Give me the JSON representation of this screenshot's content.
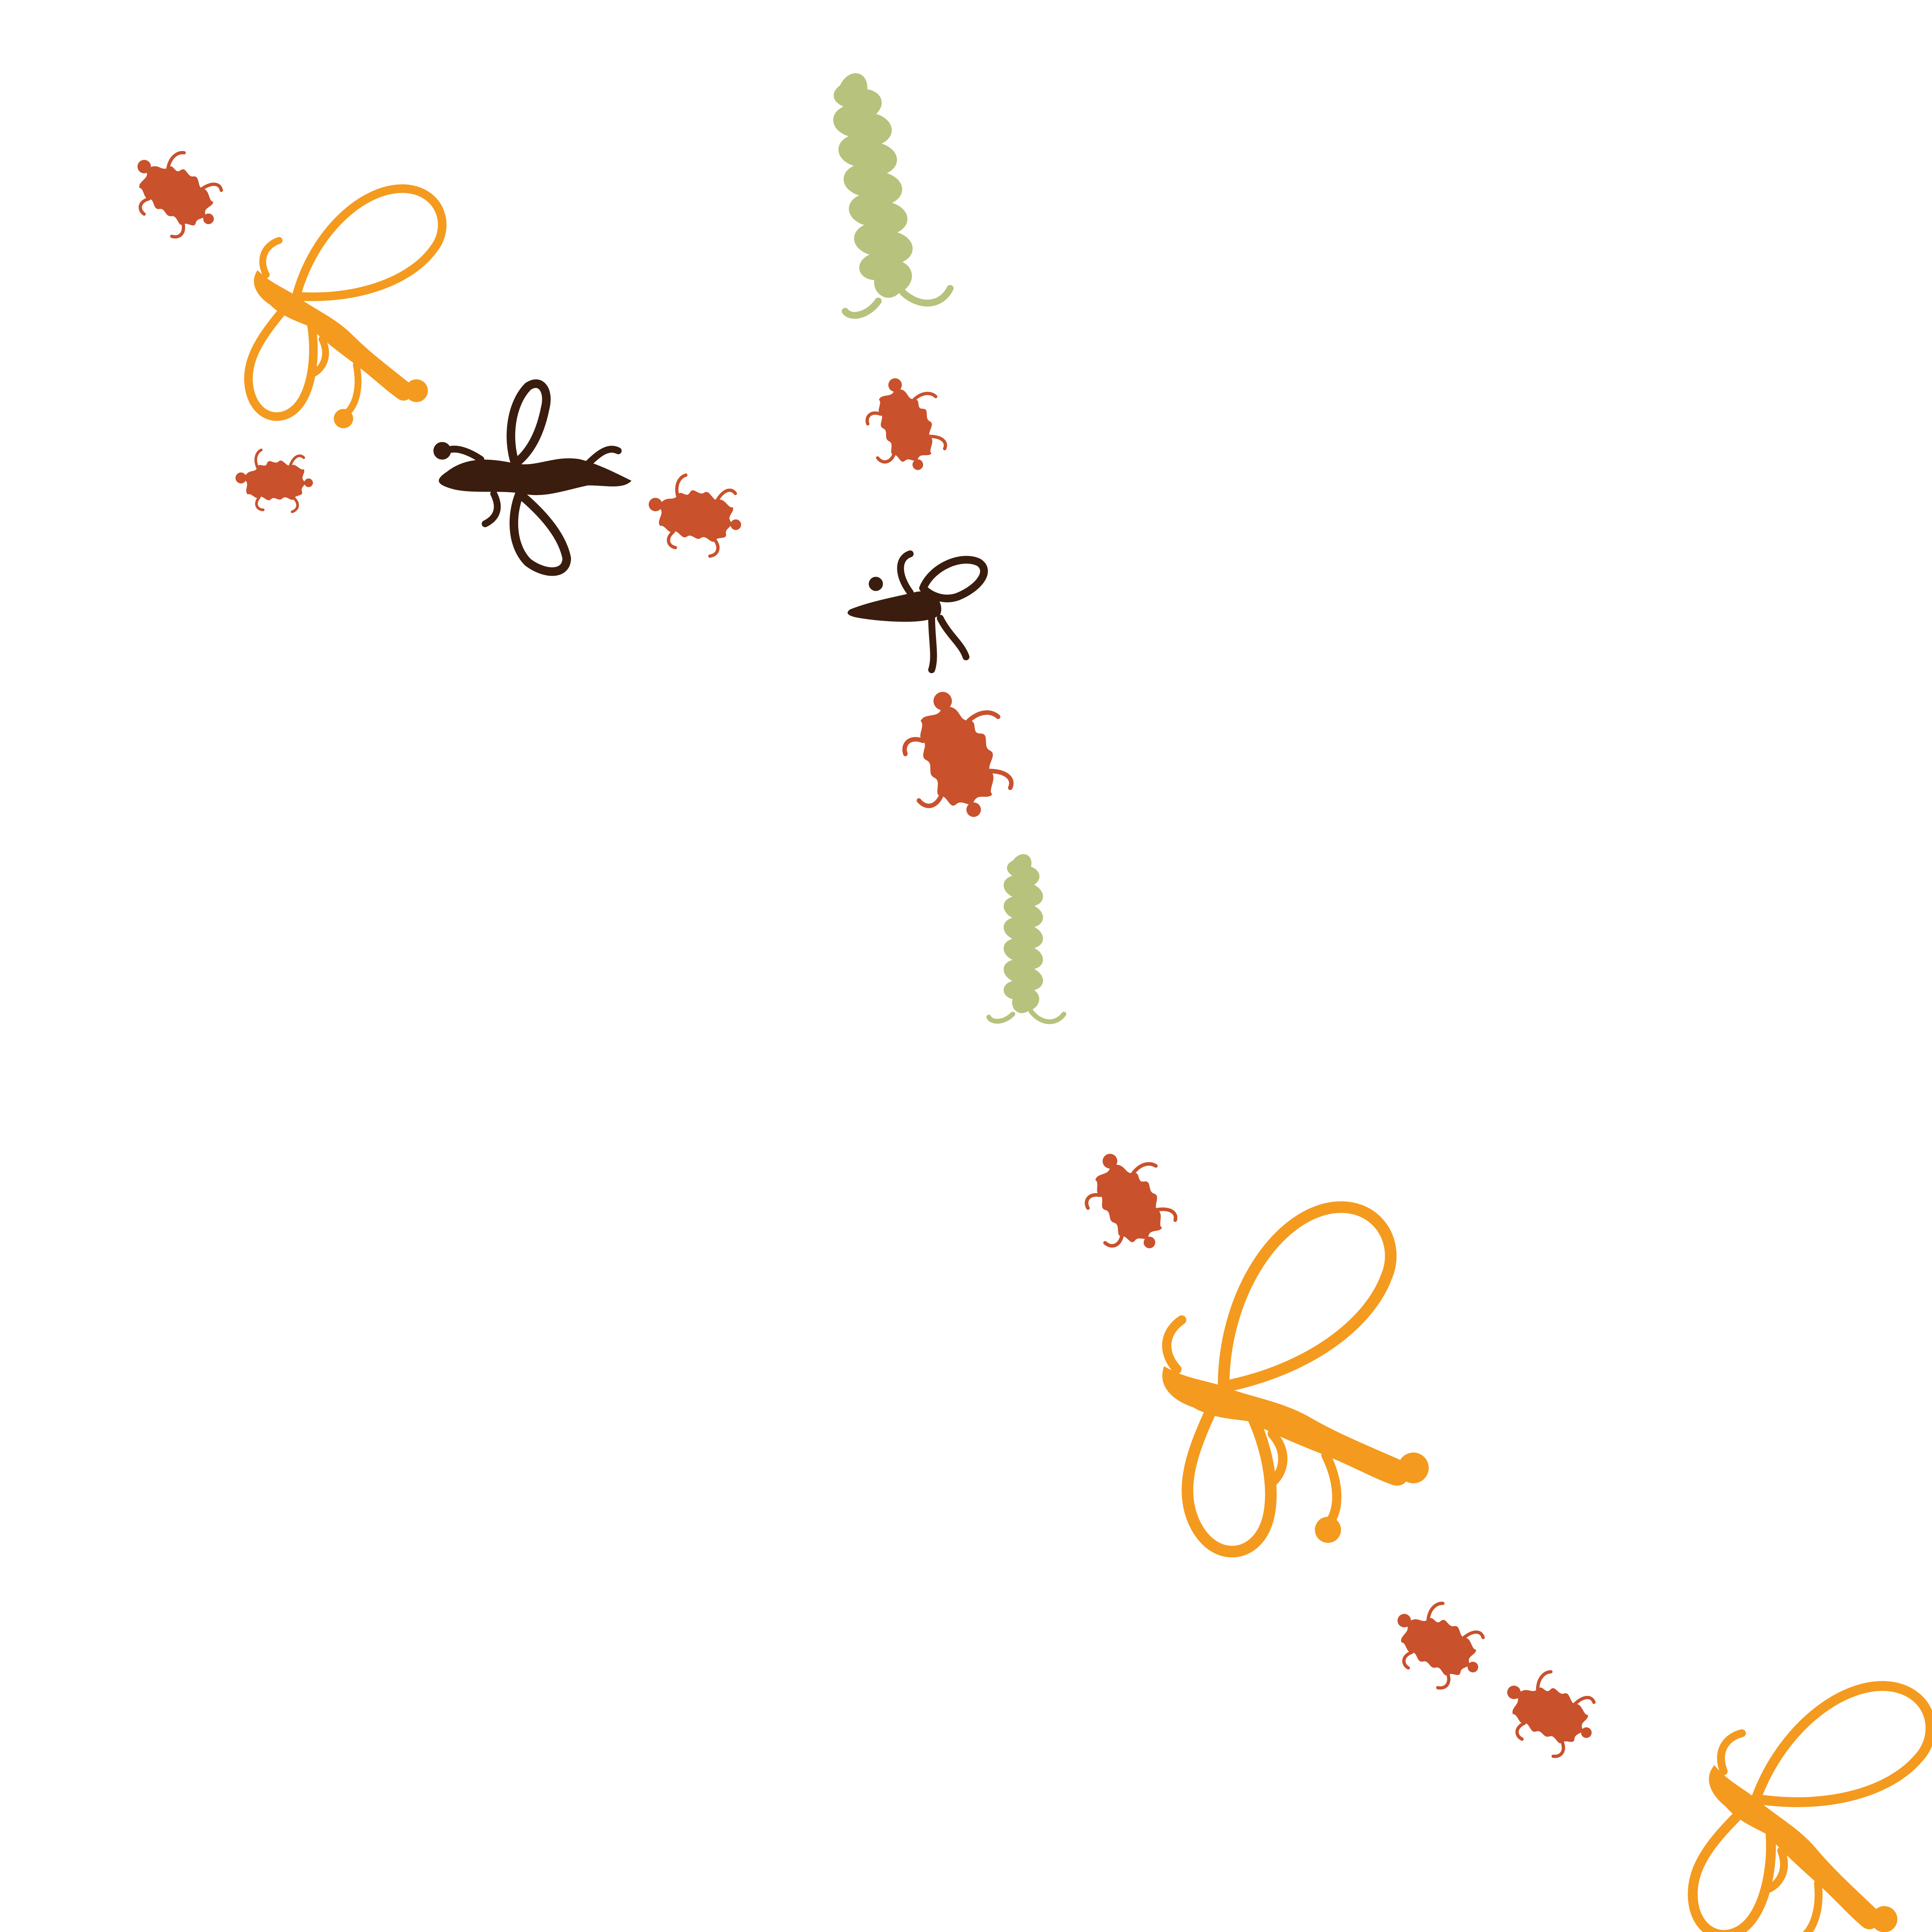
{
  "palette": {
    "background": "#ffffff",
    "orange": "#F49A1E",
    "rust": "#C9512C",
    "green": "#B7C27C",
    "brown": "#3A1D0E"
  },
  "insects": [
    {
      "kind": "ant",
      "color": "rust"
    },
    {
      "kind": "bee-outline",
      "color": "orange"
    },
    {
      "kind": "ant",
      "color": "rust"
    },
    {
      "kind": "bee-solid",
      "color": "brown"
    },
    {
      "kind": "ant",
      "color": "rust"
    },
    {
      "kind": "caterpillar",
      "color": "green"
    },
    {
      "kind": "ant",
      "color": "rust"
    },
    {
      "kind": "bee-small",
      "color": "brown"
    },
    {
      "kind": "ant",
      "color": "rust"
    },
    {
      "kind": "caterpillar",
      "color": "green"
    },
    {
      "kind": "ant",
      "color": "rust"
    },
    {
      "kind": "bee-outline",
      "color": "orange"
    },
    {
      "kind": "ant",
      "color": "rust"
    },
    {
      "kind": "ant",
      "color": "rust"
    },
    {
      "kind": "bee-outline",
      "color": "orange"
    }
  ]
}
